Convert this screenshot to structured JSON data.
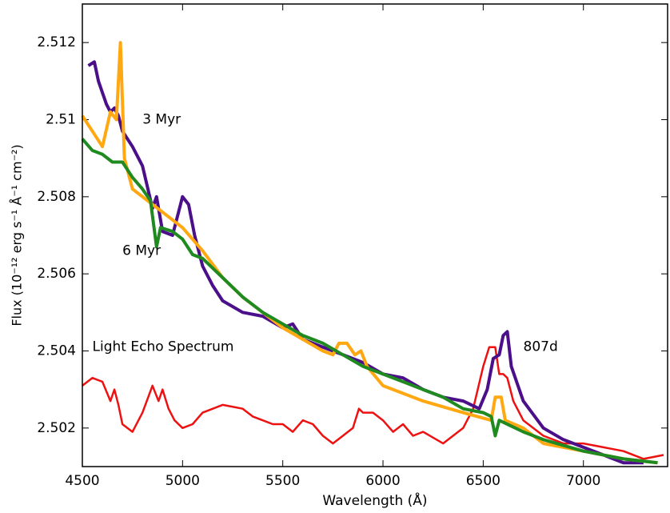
{
  "chart_data": {
    "type": "line",
    "xlabel": "Wavelength (Å)",
    "ylabel": "Flux (10⁻¹² erg s⁻¹ Å⁻¹ cm⁻²)",
    "xlim": [
      4500,
      7420
    ],
    "ylim": [
      2.501,
      2.513
    ],
    "xticks": [
      4500,
      5000,
      5500,
      6000,
      6500,
      7000
    ],
    "yticks": [
      2.502,
      2.504,
      2.506,
      2.508,
      2.51,
      2.512
    ],
    "grid": false,
    "series": [
      {
        "name": "Light Echo Spectrum",
        "color": "#ee1111",
        "x": [
          4500,
          4550,
          4600,
          4640,
          4660,
          4680,
          4700,
          4750,
          4800,
          4850,
          4880,
          4900,
          4930,
          4960,
          5000,
          5050,
          5100,
          5200,
          5300,
          5350,
          5400,
          5450,
          5500,
          5550,
          5600,
          5650,
          5700,
          5750,
          5800,
          5850,
          5880,
          5900,
          5950,
          6000,
          6050,
          6100,
          6150,
          6200,
          6300,
          6400,
          6450,
          6500,
          6530,
          6560,
          6580,
          6600,
          6620,
          6650,
          6700,
          6800,
          6900,
          7000,
          7100,
          7200,
          7300,
          7400
        ],
        "values": [
          2.5031,
          2.5033,
          2.5032,
          2.5027,
          2.503,
          2.5026,
          2.5021,
          2.5019,
          2.5024,
          2.5031,
          2.5027,
          2.503,
          2.5025,
          2.5022,
          2.502,
          2.5021,
          2.5024,
          2.5026,
          2.5025,
          2.5023,
          2.5022,
          2.5021,
          2.5021,
          2.5019,
          2.5022,
          2.5021,
          2.5018,
          2.5016,
          2.5018,
          2.502,
          2.5025,
          2.5024,
          2.5024,
          2.5022,
          2.5019,
          2.5021,
          2.5018,
          2.5019,
          2.5016,
          2.502,
          2.5025,
          2.5036,
          2.5041,
          2.5041,
          2.5034,
          2.5034,
          2.5033,
          2.5027,
          2.5022,
          2.5018,
          2.5016,
          2.5016,
          2.5015,
          2.5014,
          2.5012,
          2.5013
        ]
      },
      {
        "name": "807d",
        "color": "#4b0f8a",
        "x": [
          4530,
          4560,
          4580,
          4620,
          4640,
          4660,
          4680,
          4700,
          4750,
          4800,
          4850,
          4870,
          4900,
          4950,
          4980,
          5000,
          5030,
          5060,
          5100,
          5150,
          5200,
          5300,
          5400,
          5500,
          5550,
          5600,
          5700,
          5800,
          5900,
          6000,
          6100,
          6200,
          6300,
          6400,
          6480,
          6520,
          6550,
          6580,
          6600,
          6620,
          6640,
          6700,
          6800,
          6900,
          7000,
          7100,
          7200,
          7300
        ],
        "values": [
          2.5114,
          2.5115,
          2.511,
          2.5104,
          2.5102,
          2.5103,
          2.5101,
          2.5097,
          2.5093,
          2.5088,
          2.5077,
          2.508,
          2.5071,
          2.507,
          2.5076,
          2.508,
          2.5078,
          2.507,
          2.5062,
          2.5057,
          2.5053,
          2.505,
          2.5049,
          2.5046,
          2.5047,
          2.5043,
          2.5041,
          2.5039,
          2.5037,
          2.5034,
          2.5033,
          2.503,
          2.5028,
          2.5027,
          2.5025,
          2.503,
          2.5038,
          2.5039,
          2.5044,
          2.5045,
          2.5036,
          2.5027,
          2.502,
          2.5017,
          2.5015,
          2.5013,
          2.5011,
          2.5011
        ]
      },
      {
        "name": "3 Myr",
        "color": "#ffa812",
        "x": [
          4500,
          4600,
          4640,
          4670,
          4690,
          4710,
          4750,
          4800,
          4900,
          5000,
          5100,
          5200,
          5300,
          5400,
          5500,
          5600,
          5700,
          5750,
          5780,
          5820,
          5860,
          5890,
          5920,
          6000,
          6200,
          6400,
          6540,
          6560,
          6590,
          6610,
          6700,
          6800,
          7000,
          7200,
          7370
        ],
        "values": [
          2.5101,
          2.5093,
          2.5102,
          2.51,
          2.512,
          2.509,
          2.5082,
          2.508,
          2.5076,
          2.5072,
          2.5066,
          2.5059,
          2.5054,
          2.505,
          2.5046,
          2.5043,
          2.504,
          2.5039,
          2.5042,
          2.5042,
          2.5039,
          2.504,
          2.5036,
          2.5031,
          2.5027,
          2.5024,
          2.5022,
          2.5028,
          2.5028,
          2.5022,
          2.502,
          2.5016,
          2.5014,
          2.5012,
          2.5011
        ]
      },
      {
        "name": "6 Myr",
        "color": "#1f8a1f",
        "x": [
          4500,
          4550,
          4600,
          4650,
          4700,
          4750,
          4800,
          4840,
          4870,
          4890,
          4950,
          5000,
          5050,
          5100,
          5200,
          5300,
          5400,
          5500,
          5600,
          5700,
          5800,
          5900,
          6000,
          6100,
          6200,
          6300,
          6400,
          6500,
          6540,
          6560,
          6580,
          6700,
          6800,
          7000,
          7200,
          7370
        ],
        "values": [
          2.5095,
          2.5092,
          2.5091,
          2.5089,
          2.5089,
          2.5085,
          2.5082,
          2.5079,
          2.5067,
          2.5072,
          2.5071,
          2.5069,
          2.5065,
          2.5064,
          2.5059,
          2.5054,
          2.505,
          2.5047,
          2.5044,
          2.5042,
          2.5039,
          2.5036,
          2.5034,
          2.5032,
          2.503,
          2.5028,
          2.5025,
          2.5024,
          2.5023,
          2.5018,
          2.5022,
          2.5019,
          2.5017,
          2.5014,
          2.5012,
          2.5011
        ]
      }
    ]
  }
}
